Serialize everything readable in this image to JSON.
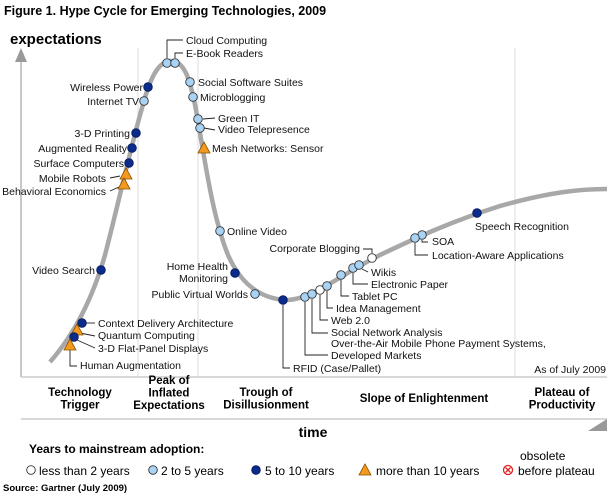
{
  "title": "Figure 1. Hype Cycle for Emerging Technologies, 2009",
  "y_axis_label": "expectations",
  "x_axis_label": "time",
  "as_of": "As of July 2009",
  "source": "Source: Gartner (July 2009)",
  "colors": {
    "curve": "#aaaaaa",
    "less_than_2": "#ffffff",
    "2_to_5": "#a9d3f5",
    "5_to_10": "#0b2c8a",
    "more_than_10": "#f39a1e",
    "obsolete": "#e02020"
  },
  "phases": [
    {
      "lines": [
        "Technology",
        "Trigger"
      ]
    },
    {
      "lines": [
        "Peak of",
        "Inflated",
        "Expectations"
      ]
    },
    {
      "lines": [
        "Trough of",
        "Disillusionment"
      ]
    },
    {
      "lines": [
        "Slope of Enlightenment"
      ]
    },
    {
      "lines": [
        "Plateau of",
        "Productivity"
      ]
    }
  ],
  "technologies": [
    {
      "lines": [
        "Cloud Computing"
      ],
      "adoption": "2_to_5"
    },
    {
      "lines": [
        "E-Book Readers"
      ],
      "adoption": "2_to_5"
    },
    {
      "lines": [
        "Social Software Suites"
      ],
      "adoption": "2_to_5"
    },
    {
      "lines": [
        "Microblogging"
      ],
      "adoption": "2_to_5"
    },
    {
      "lines": [
        "Green IT"
      ],
      "adoption": "2_to_5"
    },
    {
      "lines": [
        "Video Telepresence"
      ],
      "adoption": "2_to_5"
    },
    {
      "lines": [
        "Mesh Networks: Sensor"
      ],
      "adoption": "more_than_10"
    },
    {
      "lines": [
        "Online Video"
      ],
      "adoption": "2_to_5"
    },
    {
      "lines": [
        "Home Health",
        "Monitoring"
      ],
      "adoption": "5_to_10"
    },
    {
      "lines": [
        "Public Virtual Worlds"
      ],
      "adoption": "2_to_5"
    },
    {
      "lines": [
        "RFID (Case/Pallet)"
      ],
      "adoption": "5_to_10"
    },
    {
      "lines": [
        "Over-the-Air Mobile Phone Payment Systems,",
        "Developed Markets"
      ],
      "adoption": "2_to_5"
    },
    {
      "lines": [
        "Social Network Analysis"
      ],
      "adoption": "2_to_5"
    },
    {
      "lines": [
        "Web 2.0"
      ],
      "adoption": "less_than_2"
    },
    {
      "lines": [
        "Idea Management"
      ],
      "adoption": "2_to_5"
    },
    {
      "lines": [
        "Tablet PC"
      ],
      "adoption": "2_to_5"
    },
    {
      "lines": [
        "Electronic Paper"
      ],
      "adoption": "2_to_5"
    },
    {
      "lines": [
        "Wikis"
      ],
      "adoption": "2_to_5"
    },
    {
      "lines": [
        "Corporate Blogging"
      ],
      "adoption": "less_than_2"
    },
    {
      "lines": [
        "SOA"
      ],
      "adoption": "2_to_5"
    },
    {
      "lines": [
        "Location-Aware Applications"
      ],
      "adoption": "2_to_5"
    },
    {
      "lines": [
        "Speech Recognition"
      ],
      "adoption": "5_to_10"
    },
    {
      "lines": [
        "Wireless Power"
      ],
      "adoption": "5_to_10"
    },
    {
      "lines": [
        "Internet TV"
      ],
      "adoption": "2_to_5"
    },
    {
      "lines": [
        "3-D Printing"
      ],
      "adoption": "5_to_10"
    },
    {
      "lines": [
        "Augmented Reality"
      ],
      "adoption": "5_to_10"
    },
    {
      "lines": [
        "Surface Computers"
      ],
      "adoption": "5_to_10"
    },
    {
      "lines": [
        "Mobile Robots"
      ],
      "adoption": "more_than_10"
    },
    {
      "lines": [
        "Behavioral Economics"
      ],
      "adoption": "more_than_10"
    },
    {
      "lines": [
        "Video Search"
      ],
      "adoption": "5_to_10"
    },
    {
      "lines": [
        "Context Delivery Architecture"
      ],
      "adoption": "5_to_10"
    },
    {
      "lines": [
        "Quantum Computing"
      ],
      "adoption": "more_than_10"
    },
    {
      "lines": [
        "3-D Flat-Panel Displays"
      ],
      "adoption": "5_to_10"
    },
    {
      "lines": [
        "Human Augmentation"
      ],
      "adoption": "more_than_10"
    }
  ],
  "legend": {
    "title": "Years to mainstream adoption:",
    "items": [
      {
        "key": "less_than_2",
        "label": "less than 2 years"
      },
      {
        "key": "2_to_5",
        "label": "2 to 5 years"
      },
      {
        "key": "5_to_10",
        "label": "5 to 10 years"
      },
      {
        "key": "more_than_10",
        "label": "more than 10 years"
      },
      {
        "key": "obsolete",
        "label_top": "obsolete",
        "label": "before plateau"
      }
    ]
  }
}
